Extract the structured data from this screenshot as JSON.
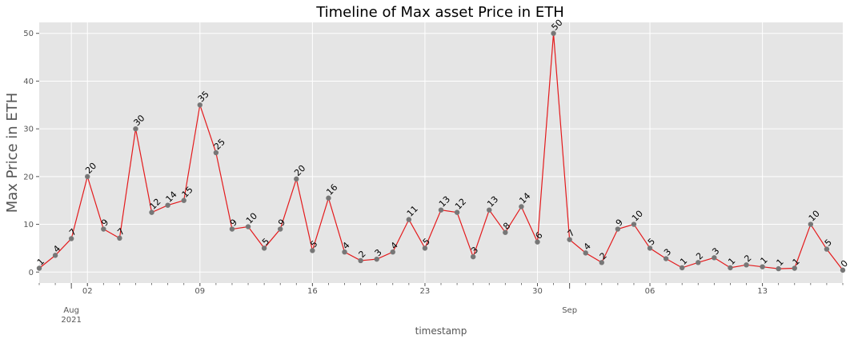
{
  "chart_data": {
    "type": "line",
    "title": "Timeline of Max asset Price in ETH",
    "xlabel": "timestamp",
    "ylabel": "Max Price in ETH",
    "start_date": "2021-07-30",
    "x_major_ticks": [
      {
        "label": "02",
        "label2": ""
      },
      {
        "label": "09",
        "label2": ""
      },
      {
        "label": "16",
        "label2": ""
      },
      {
        "label": "23",
        "label2": ""
      },
      {
        "label": "30",
        "label2": ""
      },
      {
        "label": "06",
        "label2": ""
      },
      {
        "label": "13",
        "label2": ""
      }
    ],
    "month_labels": [
      {
        "label": "Aug",
        "label2": "2021"
      },
      {
        "label": "Sep",
        "label2": ""
      }
    ],
    "yticks": [
      {
        "label": "0",
        "value": 0
      },
      {
        "label": "10",
        "value": 10
      },
      {
        "label": "20",
        "value": 20
      },
      {
        "label": "30",
        "value": 30
      },
      {
        "label": "40",
        "value": 40
      },
      {
        "label": "50",
        "value": 50
      }
    ],
    "ylim": [
      -2.3,
      52.3
    ],
    "grid": true,
    "line_color": "#e41a1c",
    "marker_color": "#777777",
    "background": "#e5e5e5",
    "x": [
      "2021-07-30",
      "2021-07-31",
      "2021-08-01",
      "2021-08-02",
      "2021-08-03",
      "2021-08-04",
      "2021-08-05",
      "2021-08-06",
      "2021-08-07",
      "2021-08-08",
      "2021-08-09",
      "2021-08-10",
      "2021-08-11",
      "2021-08-12",
      "2021-08-13",
      "2021-08-14",
      "2021-08-15",
      "2021-08-16",
      "2021-08-17",
      "2021-08-18",
      "2021-08-19",
      "2021-08-20",
      "2021-08-21",
      "2021-08-22",
      "2021-08-23",
      "2021-08-24",
      "2021-08-25",
      "2021-08-26",
      "2021-08-27",
      "2021-08-28",
      "2021-08-29",
      "2021-08-30",
      "2021-08-31",
      "2021-09-01",
      "2021-09-02",
      "2021-09-03",
      "2021-09-04",
      "2021-09-05",
      "2021-09-06",
      "2021-09-07",
      "2021-09-08",
      "2021-09-09",
      "2021-09-10",
      "2021-09-11",
      "2021-09-12",
      "2021-09-13",
      "2021-09-14",
      "2021-09-15",
      "2021-09-16",
      "2021-09-17",
      "2021-09-18"
    ],
    "values": [
      0.8,
      3.5,
      7,
      20,
      9,
      7.1,
      30,
      12.5,
      14,
      15,
      35,
      25,
      9,
      9.5,
      5,
      9,
      19.5,
      4.5,
      15.5,
      4.2,
      2.4,
      2.7,
      4.2,
      11,
      5,
      13,
      12.5,
      3.2,
      13,
      8.3,
      13.7,
      6.3,
      50,
      6.8,
      4,
      2,
      9,
      10,
      5,
      2.8,
      0.9,
      2,
      3,
      0.9,
      1.5,
      1.1,
      0.7,
      0.8,
      10,
      4.8,
      0.4
    ],
    "data_labels": [
      "1",
      "4",
      "7",
      "20",
      "9",
      "7",
      "30",
      "12",
      "14",
      "15",
      "35",
      "25",
      "9",
      "10",
      "5",
      "9",
      "20",
      "5",
      "16",
      "4",
      "2",
      "3",
      "4",
      "11",
      "5",
      "13",
      "12",
      "3",
      "13",
      "8",
      "14",
      "6",
      "50",
      "7",
      "4",
      "2",
      "9",
      "10",
      "5",
      "3",
      "1",
      "2",
      "3",
      "1",
      "2",
      "1",
      "1",
      "1",
      "10",
      "5",
      "0"
    ]
  }
}
